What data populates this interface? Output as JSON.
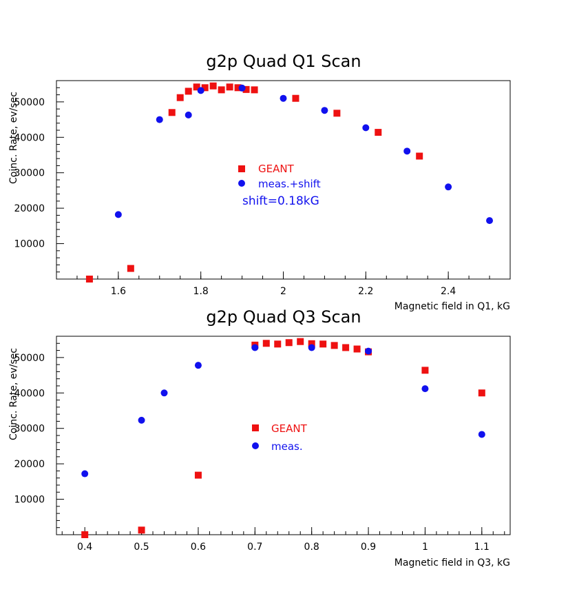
{
  "chart_data": [
    {
      "type": "scatter",
      "title": "g2p Quad Q1 Scan",
      "xlabel": "Magnetic field in Q1, kG",
      "ylabel": "Coinс. Rate, ev/sec",
      "xlim": [
        1.45,
        2.55
      ],
      "ylim": [
        0,
        56000
      ],
      "x_ticks": [
        1.6,
        1.8,
        2,
        2.2,
        2.4
      ],
      "x_tick_labels": [
        "1.6",
        "1.8",
        "2",
        "2.2",
        "2.4"
      ],
      "y_ticks": [
        10000,
        20000,
        30000,
        40000,
        50000
      ],
      "y_tick_labels": [
        "10000",
        "20000",
        "30000",
        "40000",
        "50000"
      ],
      "legend": {
        "position": "center",
        "entries": [
          "GEANT",
          "meas.+shift"
        ],
        "annotation": "shift=0.18kG"
      },
      "series": [
        {
          "name": "GEANT",
          "marker": "square",
          "color": "#ee1111",
          "points": [
            [
              1.53,
              0
            ],
            [
              1.63,
              3000
            ],
            [
              1.73,
              47000
            ],
            [
              1.75,
              51200
            ],
            [
              1.77,
              53000
            ],
            [
              1.79,
              54200
            ],
            [
              1.81,
              54000
            ],
            [
              1.83,
              54500
            ],
            [
              1.85,
              53400
            ],
            [
              1.87,
              54200
            ],
            [
              1.89,
              54000
            ],
            [
              1.91,
              53500
            ],
            [
              1.93,
              53400
            ],
            [
              2.03,
              51000
            ],
            [
              2.13,
              46800
            ],
            [
              2.23,
              41400
            ],
            [
              2.33,
              34700
            ]
          ]
        },
        {
          "name": "meas.+shift",
          "marker": "circle",
          "color": "#1111ee",
          "points": [
            [
              1.6,
              18200
            ],
            [
              1.7,
              45000
            ],
            [
              1.77,
              46300
            ],
            [
              1.8,
              53200
            ],
            [
              1.9,
              53900
            ],
            [
              2.0,
              51000
            ],
            [
              2.1,
              47600
            ],
            [
              2.2,
              42700
            ],
            [
              2.3,
              36100
            ],
            [
              2.4,
              26000
            ],
            [
              2.5,
              16500
            ]
          ]
        }
      ]
    },
    {
      "type": "scatter",
      "title": "g2p Quad Q3 Scan",
      "xlabel": "Magnetic field in Q3, kG",
      "ylabel": "Coinс. Rate, ev/sec",
      "xlim": [
        0.35,
        1.15
      ],
      "ylim": [
        0,
        56000
      ],
      "x_ticks": [
        0.4,
        0.5,
        0.6,
        0.7,
        0.8,
        0.9,
        1,
        1.1
      ],
      "x_tick_labels": [
        "0.4",
        "0.5",
        "0.6",
        "0.7",
        "0.8",
        "0.9",
        "1",
        "1.1"
      ],
      "y_ticks": [
        10000,
        20000,
        30000,
        40000,
        50000
      ],
      "y_tick_labels": [
        "10000",
        "20000",
        "30000",
        "40000",
        "50000"
      ],
      "legend": {
        "position": "center",
        "entries": [
          "GEANT",
          "meas."
        ]
      },
      "series": [
        {
          "name": "GEANT",
          "marker": "square",
          "color": "#ee1111",
          "points": [
            [
              0.4,
              0
            ],
            [
              0.5,
              1300
            ],
            [
              0.6,
              16800
            ],
            [
              0.7,
              53500
            ],
            [
              0.72,
              54000
            ],
            [
              0.74,
              53800
            ],
            [
              0.76,
              54200
            ],
            [
              0.78,
              54500
            ],
            [
              0.8,
              53900
            ],
            [
              0.82,
              53800
            ],
            [
              0.84,
              53400
            ],
            [
              0.86,
              52800
            ],
            [
              0.88,
              52400
            ],
            [
              0.9,
              51600
            ],
            [
              1.0,
              46400
            ],
            [
              1.1,
              40000
            ]
          ]
        },
        {
          "name": "meas.",
          "marker": "circle",
          "color": "#1111ee",
          "points": [
            [
              0.4,
              17200
            ],
            [
              0.5,
              32300
            ],
            [
              0.54,
              40000
            ],
            [
              0.6,
              47800
            ],
            [
              0.7,
              52800
            ],
            [
              0.8,
              52800
            ],
            [
              0.9,
              51800
            ],
            [
              1.0,
              41200
            ],
            [
              1.1,
              28300
            ]
          ]
        }
      ]
    }
  ]
}
